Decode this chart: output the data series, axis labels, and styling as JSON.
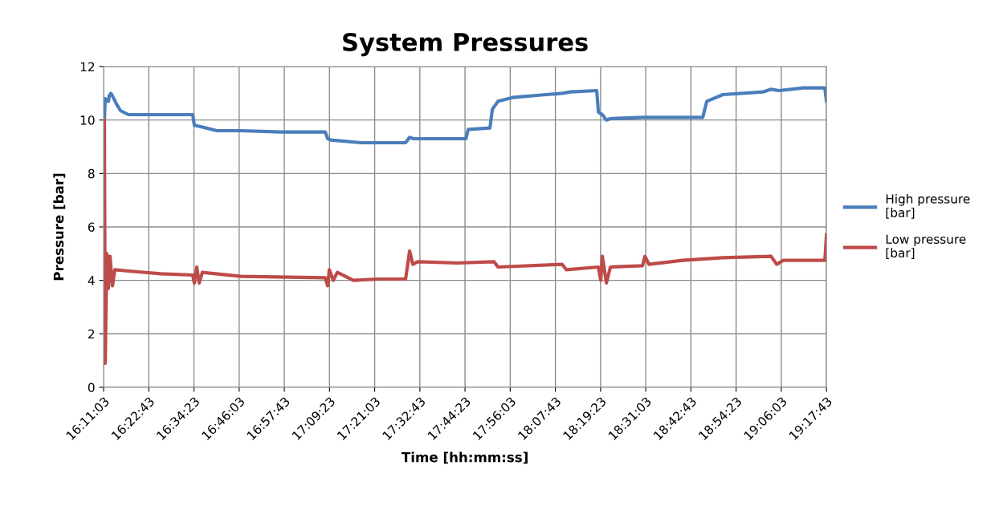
{
  "chart_data": {
    "type": "line",
    "title": "System Pressures",
    "xlabel": "Time [hh:mm:ss]",
    "ylabel": "Pressure [bar]",
    "xlim": [
      16.1842,
      19.2953
    ],
    "xticks": [
      {
        "value": 16.1842,
        "label": "16:11:03"
      },
      {
        "value": 16.3786,
        "label": "16:22:43"
      },
      {
        "value": 16.5731,
        "label": "16:34:23"
      },
      {
        "value": 16.7675,
        "label": "16:46:03"
      },
      {
        "value": 16.9619,
        "label": "16:57:43"
      },
      {
        "value": 17.1564,
        "label": "17:09:23"
      },
      {
        "value": 17.3508,
        "label": "17:21:03"
      },
      {
        "value": 17.5453,
        "label": "17:32:43"
      },
      {
        "value": 17.7397,
        "label": "17:44:23"
      },
      {
        "value": 17.9342,
        "label": "17:56:03"
      },
      {
        "value": 18.1286,
        "label": "18:07:43"
      },
      {
        "value": 18.3231,
        "label": "18:19:23"
      },
      {
        "value": 18.5175,
        "label": "18:31:03"
      },
      {
        "value": 18.7119,
        "label": "18:42:43"
      },
      {
        "value": 18.9064,
        "label": "18:54:23"
      },
      {
        "value": 19.1008,
        "label": "19:06:03"
      },
      {
        "value": 19.2953,
        "label": "19:17:43"
      }
    ],
    "ylim": [
      0,
      12
    ],
    "yticks": [
      0,
      2,
      4,
      6,
      8,
      10,
      12
    ],
    "grid": true,
    "legend": "right",
    "marker": "none",
    "line_style": "solid",
    "series": [
      {
        "name": "High pressure [bar]",
        "color": "#4a7ebb",
        "x": [
          16.1876,
          16.1911,
          16.2049,
          16.2084,
          16.2153,
          16.2222,
          16.2395,
          16.2568,
          16.2913,
          16.4296,
          16.5679,
          16.5748,
          16.6024,
          16.6716,
          16.7753,
          16.9481,
          17.1383,
          17.1486,
          17.1624,
          17.2938,
          17.4839,
          17.5012,
          17.5185,
          17.6741,
          17.7432,
          17.7536,
          17.8469,
          17.8573,
          17.8815,
          17.9506,
          18.0889,
          18.158,
          18.1926,
          18.3066,
          18.3136,
          18.3308,
          18.3481,
          18.3654,
          18.5037,
          18.6766,
          18.763,
          18.7803,
          18.8494,
          19.0223,
          19.0568,
          19.0914,
          19.1951,
          19.2884,
          19.2953
        ],
        "values": [
          10.0,
          10.8,
          10.7,
          10.9,
          11.0,
          10.9,
          10.6,
          10.35,
          10.2,
          10.2,
          10.2,
          9.8,
          9.75,
          9.6,
          9.6,
          9.55,
          9.55,
          9.3,
          9.25,
          9.15,
          9.15,
          9.35,
          9.3,
          9.3,
          9.3,
          9.65,
          9.7,
          10.4,
          10.7,
          10.85,
          10.95,
          11.0,
          11.05,
          11.1,
          10.3,
          10.2,
          10.0,
          10.05,
          10.1,
          10.1,
          10.1,
          10.7,
          10.95,
          11.05,
          11.15,
          11.1,
          11.2,
          11.2,
          10.7
        ]
      },
      {
        "name": "Low pressure [bar]",
        "color": "#be4b48",
        "x": [
          16.1876,
          16.1911,
          16.198,
          16.2049,
          16.2118,
          16.2222,
          16.2326,
          16.2913,
          16.4296,
          16.5679,
          16.5748,
          16.5852,
          16.5955,
          16.6094,
          16.7753,
          17.1383,
          17.1486,
          17.1555,
          17.1728,
          17.1901,
          17.2592,
          17.363,
          17.4839,
          17.5012,
          17.515,
          17.5358,
          17.7087,
          17.8642,
          17.8815,
          18.158,
          18.1753,
          18.3136,
          18.3239,
          18.3308,
          18.3481,
          18.3654,
          18.5037,
          18.5141,
          18.5314,
          18.6766,
          18.8494,
          19.0568,
          19.081,
          19.1087,
          19.2884,
          19.2953
        ],
        "values": [
          10.0,
          0.9,
          5.0,
          3.7,
          4.9,
          3.8,
          4.4,
          4.35,
          4.25,
          4.2,
          3.9,
          4.5,
          3.9,
          4.3,
          4.15,
          4.1,
          3.8,
          4.4,
          4.0,
          4.3,
          4.0,
          4.05,
          4.05,
          5.1,
          4.6,
          4.7,
          4.65,
          4.7,
          4.5,
          4.6,
          4.4,
          4.5,
          4.0,
          4.9,
          3.9,
          4.5,
          4.55,
          4.9,
          4.6,
          4.75,
          4.85,
          4.9,
          4.6,
          4.75,
          4.75,
          5.7
        ]
      }
    ]
  }
}
